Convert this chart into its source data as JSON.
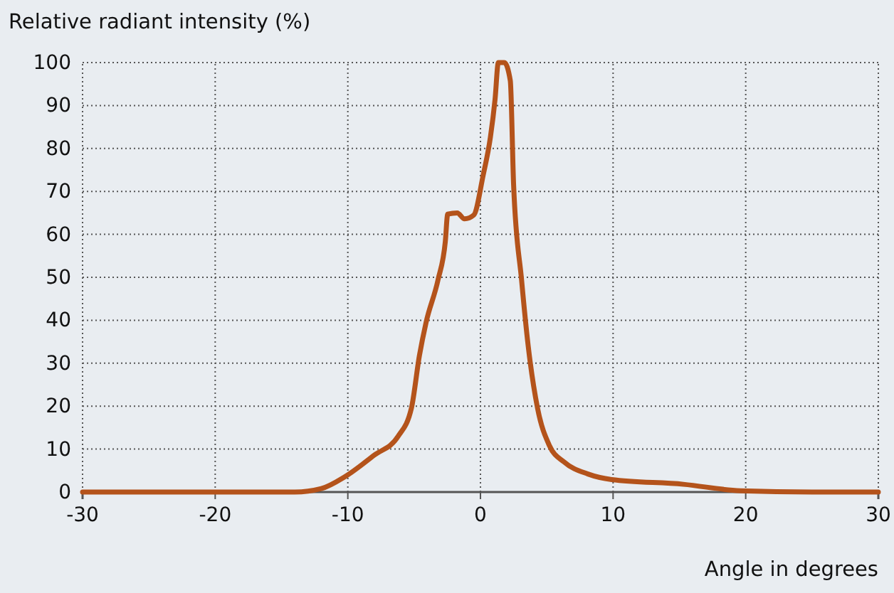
{
  "chart_data": {
    "type": "line",
    "ylabel": "Relative radiant intensity (%)",
    "xlabel": "Angle in degrees",
    "xlim": [
      -30,
      30
    ],
    "xticks": [
      -30,
      -20,
      -10,
      0,
      10,
      20,
      30
    ],
    "ylim": [
      0,
      100
    ],
    "yticks": [
      0,
      10,
      20,
      30,
      40,
      50,
      60,
      70,
      80,
      90,
      100
    ],
    "grid": true,
    "series": [
      {
        "color": "#b4531b",
        "x": [
          -30,
          -20,
          -17,
          -14,
          -12,
          -10.2,
          -8,
          -6.2,
          -5.2,
          -4.6,
          -4.1,
          -3.2,
          -2.65,
          -2.47,
          -1.75,
          -1.2,
          -0.5,
          0.2,
          0.75,
          1.1,
          1.35,
          1.8,
          2.25,
          2.5,
          3.1,
          3.6,
          4.3,
          5.2,
          6.3,
          8.1,
          9.9,
          15.3,
          19.6,
          25,
          30
        ],
        "values": [
          0,
          0,
          0,
          0,
          0.8,
          3.6,
          8.6,
          13,
          19.6,
          31.8,
          39.5,
          49.4,
          58.3,
          64.7,
          65,
          63.6,
          64.5,
          73.7,
          82.6,
          91.4,
          100,
          100,
          95.8,
          71.5,
          49.4,
          34,
          19.6,
          10.8,
          7,
          4.2,
          2.9,
          1.8,
          0.3,
          0,
          0
        ]
      }
    ]
  }
}
